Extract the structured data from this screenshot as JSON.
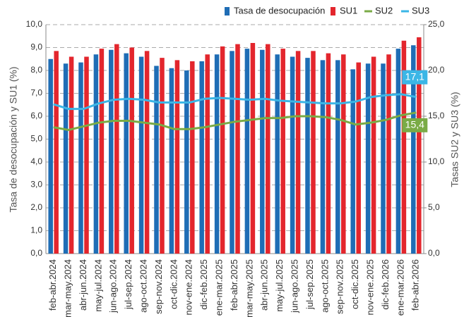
{
  "chart_data": {
    "type": "bar",
    "categories": [
      "feb-abr.2024",
      "mar-may.2024",
      "abr-jun.2024",
      "may-jul.2024",
      "jun-ago.2024",
      "jul-sep.2024",
      "ago-oct.2024",
      "sep-nov.2024",
      "oct-dic.2024",
      "nov-ene.2024",
      "dic-feb.2025",
      "ene-mar.2025",
      "feb-abr.2025",
      "mar-may.2025",
      "abr-jun.2025",
      "may-jul.2025",
      "jun-ago.2025",
      "jul-sep.2025",
      "ago-oct.2025",
      "sep-nov.2025",
      "oct-dic.2025",
      "nov-ene.2025",
      "dic-feb.2026",
      "ene-mar.2026",
      "feb-abr.2026"
    ],
    "series": [
      {
        "name": "Tasa de desocupación",
        "type": "bar",
        "color": "#1f6db5",
        "values": [
          8.5,
          8.3,
          8.35,
          8.7,
          8.9,
          8.75,
          8.6,
          8.2,
          8.1,
          8.0,
          8.4,
          8.7,
          8.85,
          8.95,
          8.9,
          8.7,
          8.6,
          8.55,
          8.45,
          8.45,
          8.05,
          8.3,
          8.3,
          8.95,
          9.1
        ]
      },
      {
        "name": "SU1",
        "type": "bar",
        "color": "#e3262d",
        "values": [
          8.85,
          8.6,
          8.6,
          8.95,
          9.15,
          9.0,
          8.85,
          8.55,
          8.45,
          8.4,
          8.7,
          9.05,
          9.15,
          9.2,
          9.15,
          8.95,
          8.85,
          8.85,
          8.75,
          8.7,
          8.35,
          8.6,
          8.7,
          9.3,
          9.45
        ]
      },
      {
        "name": "SU2",
        "type": "line",
        "axis": "y2",
        "color": "#7aab46",
        "values": [
          13.8,
          13.5,
          13.9,
          14.3,
          14.5,
          14.5,
          14.3,
          14.1,
          13.6,
          13.6,
          13.8,
          14.1,
          14.4,
          14.6,
          14.8,
          14.8,
          15.0,
          15.0,
          14.9,
          14.6,
          14.1,
          14.3,
          14.6,
          15.1,
          15.4
        ],
        "value_labels": [
          null,
          null,
          null,
          null,
          null,
          null,
          null,
          null,
          null,
          null,
          null,
          null,
          null,
          null,
          null,
          null,
          null,
          null,
          null,
          null,
          null,
          null,
          null,
          null,
          "15,4"
        ]
      },
      {
        "name": "SU3",
        "type": "line",
        "axis": "y2",
        "color": "#3bb6e6",
        "values": [
          16.3,
          15.8,
          15.8,
          16.4,
          16.8,
          16.9,
          16.8,
          16.5,
          16.5,
          16.5,
          16.9,
          17.0,
          16.9,
          16.8,
          16.9,
          16.7,
          16.6,
          16.5,
          16.4,
          16.4,
          16.6,
          17.1,
          17.3,
          17.4,
          17.1
        ],
        "value_labels": [
          null,
          null,
          null,
          null,
          null,
          null,
          null,
          null,
          null,
          null,
          null,
          null,
          null,
          null,
          null,
          null,
          null,
          null,
          null,
          null,
          null,
          null,
          null,
          null,
          "17,1"
        ]
      }
    ],
    "y_label": "Tasa de desocupación y SU1 (%)",
    "y2_label": "Tasas SU2 y SU3 (%)",
    "ylim": [
      0,
      10
    ],
    "yticks": [
      {
        "value": 0,
        "label": "0,0"
      },
      {
        "value": 1,
        "label": "1,0"
      },
      {
        "value": 2,
        "label": "2,0"
      },
      {
        "value": 3,
        "label": "3,0"
      },
      {
        "value": 4,
        "label": "4,0"
      },
      {
        "value": 5,
        "label": "5,0"
      },
      {
        "value": 6,
        "label": "6,0"
      },
      {
        "value": 7,
        "label": "7,0"
      },
      {
        "value": 8,
        "label": "8,0"
      },
      {
        "value": 9,
        "label": "9,0"
      },
      {
        "value": 10,
        "label": "10,0"
      }
    ],
    "y2lim": [
      0,
      25
    ],
    "y2ticks": [
      {
        "value": 0,
        "label": "0,0"
      },
      {
        "value": 5,
        "label": "5,0"
      },
      {
        "value": 10,
        "label": "10,0"
      },
      {
        "value": 15,
        "label": "15,0"
      },
      {
        "value": 20,
        "label": "20,0"
      },
      {
        "value": 25,
        "label": "25,0"
      }
    ],
    "grid": true,
    "legend": "top-right"
  }
}
